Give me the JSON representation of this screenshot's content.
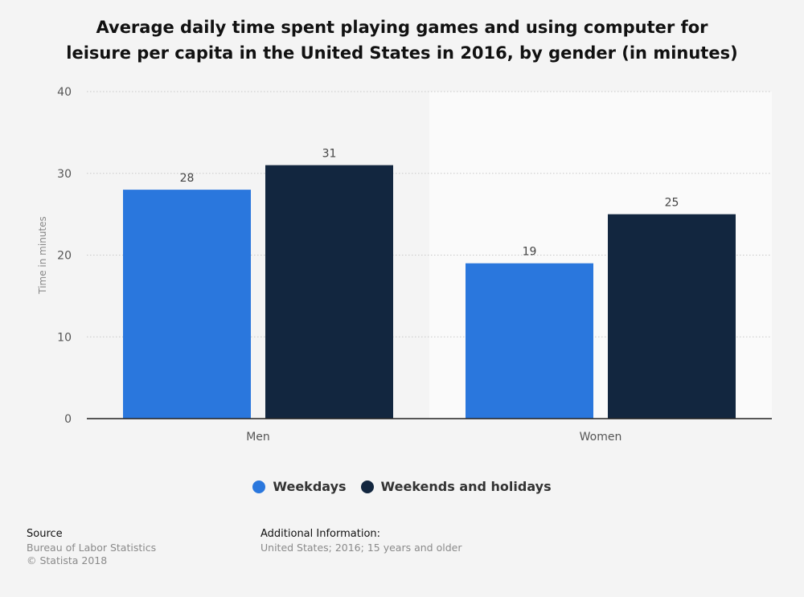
{
  "chart_data": {
    "type": "bar",
    "title_lines": [
      "Average daily time spent playing games and using computer for",
      "leisure per capita in the United States in 2016, by gender (in minutes)"
    ],
    "categories": [
      "Men",
      "Women"
    ],
    "series": [
      {
        "name": "Weekdays",
        "values": [
          28,
          19
        ],
        "color": "#2a77dd"
      },
      {
        "name": "Weekends and holidays",
        "values": [
          31,
          25
        ],
        "color": "#12263f"
      }
    ],
    "data_labels": [
      [
        "28",
        "19"
      ],
      [
        "31",
        "25"
      ]
    ],
    "ylabel": "Time in minutes",
    "ylim": [
      0,
      40
    ],
    "yticks": [
      0,
      10,
      20,
      30,
      40
    ],
    "grid": true,
    "legend": "bottom"
  },
  "footer": {
    "source_heading": "Source",
    "source_name": "Bureau of Labor Statistics",
    "copyright": "© Statista 2018",
    "additional_heading": "Additional Information:",
    "additional_text": "United States; 2016; 15 years and older"
  }
}
